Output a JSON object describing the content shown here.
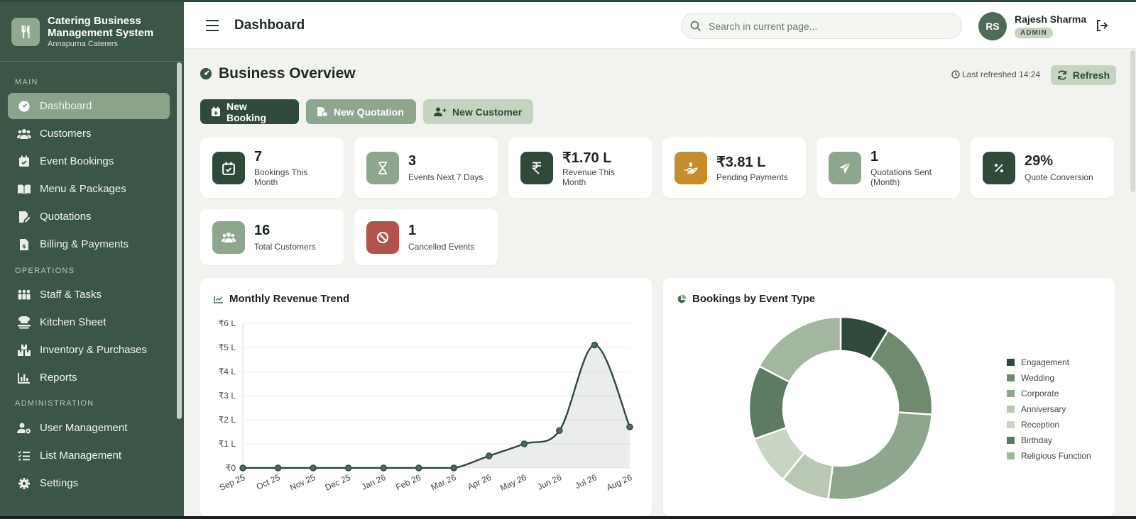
{
  "sidebar": {
    "brand_title": "Catering Business Management System",
    "brand_subtitle": "Annapurna Caterers",
    "sections": {
      "main": "MAIN",
      "operations": "OPERATIONS",
      "administration": "ADMINISTRATION"
    },
    "items": [
      {
        "label": "Dashboard",
        "icon": "gauge-icon",
        "active": true
      },
      {
        "label": "Customers",
        "icon": "users-icon"
      },
      {
        "label": "Event Bookings",
        "icon": "calendar-icon"
      },
      {
        "label": "Menu & Packages",
        "icon": "book-icon"
      },
      {
        "label": "Quotations",
        "icon": "pen-doc-icon"
      },
      {
        "label": "Billing & Payments",
        "icon": "invoice-icon"
      },
      {
        "label": "Staff & Tasks",
        "icon": "staff-icon"
      },
      {
        "label": "Kitchen Sheet",
        "icon": "chef-icon"
      },
      {
        "label": "Inventory & Purchases",
        "icon": "boxes-icon"
      },
      {
        "label": "Reports",
        "icon": "bar-chart-icon"
      },
      {
        "label": "User Management",
        "icon": "user-gear-icon"
      },
      {
        "label": "List Management",
        "icon": "list-icon"
      },
      {
        "label": "Settings",
        "icon": "gear-icon"
      }
    ]
  },
  "header": {
    "title": "Dashboard",
    "search_placeholder": "Search in current page...",
    "user_initials": "RS",
    "user_name": "Rajesh Sharma",
    "user_role": "ADMIN"
  },
  "overview": {
    "title": "Business Overview",
    "last_refreshed": "Last refreshed 14:24",
    "refresh_label": "Refresh"
  },
  "actions": {
    "new_booking": "New Booking",
    "new_quotation": "New Quotation",
    "new_customer": "New Customer"
  },
  "stats": [
    {
      "value": "7",
      "label": "Bookings This Month",
      "icon": "calendar-check-icon",
      "color": "#2f4a3b"
    },
    {
      "value": "3",
      "label": "Events Next 7 Days",
      "icon": "hourglass-icon",
      "color": "#8fa68e"
    },
    {
      "value": "₹1.70 L",
      "label": "Revenue This Month",
      "icon": "rupee-icon",
      "color": "#2f4a3b"
    },
    {
      "value": "₹3.81 L",
      "label": "Pending Payments",
      "icon": "hand-coin-icon",
      "color": "#c58d2c"
    },
    {
      "value": "1",
      "label": "Quotations Sent (Month)",
      "icon": "paper-plane-icon",
      "color": "#8fa68e"
    },
    {
      "value": "29%",
      "label": "Quote Conversion",
      "icon": "percent-icon",
      "color": "#2f4a3b"
    },
    {
      "value": "16",
      "label": "Total Customers",
      "icon": "users-icon",
      "color": "#8fa68e"
    },
    {
      "value": "1",
      "label": "Cancelled Events",
      "icon": "ban-icon",
      "color": "#b2534d"
    }
  ],
  "chart_data": [
    {
      "type": "line",
      "title": "Monthly Revenue Trend",
      "x": [
        "Sep 25",
        "Oct 25",
        "Nov 25",
        "Dec 25",
        "Jan 26",
        "Feb 26",
        "Mar 26",
        "Apr 26",
        "May 26",
        "Jun 26",
        "Jul 26",
        "Aug 26"
      ],
      "series": [
        {
          "values": [
            0,
            0,
            0,
            0,
            0,
            0,
            0,
            0.5,
            1.0,
            1.55,
            5.1,
            1.7
          ]
        }
      ],
      "y_ticks": [
        "₹0",
        "₹1 L",
        "₹2 L",
        "₹3 L",
        "₹4 L",
        "₹5 L",
        "₹6 L"
      ],
      "ylim": [
        0,
        6
      ],
      "grid": true,
      "color": "#2f4a3b"
    },
    {
      "type": "pie",
      "title": "Bookings by Event Type",
      "categories": [
        "Engagement",
        "Wedding",
        "Corporate",
        "Anniversary",
        "Reception",
        "Birthday",
        "Religious Function"
      ],
      "values": [
        2,
        4,
        6,
        2,
        2,
        3,
        4
      ],
      "colors": [
        "#2f4a3b",
        "#6f8a6f",
        "#8fa68e",
        "#b9c8b5",
        "#c8d5c4",
        "#5d7a62",
        "#a3b7a0"
      ],
      "legend": "right"
    }
  ]
}
